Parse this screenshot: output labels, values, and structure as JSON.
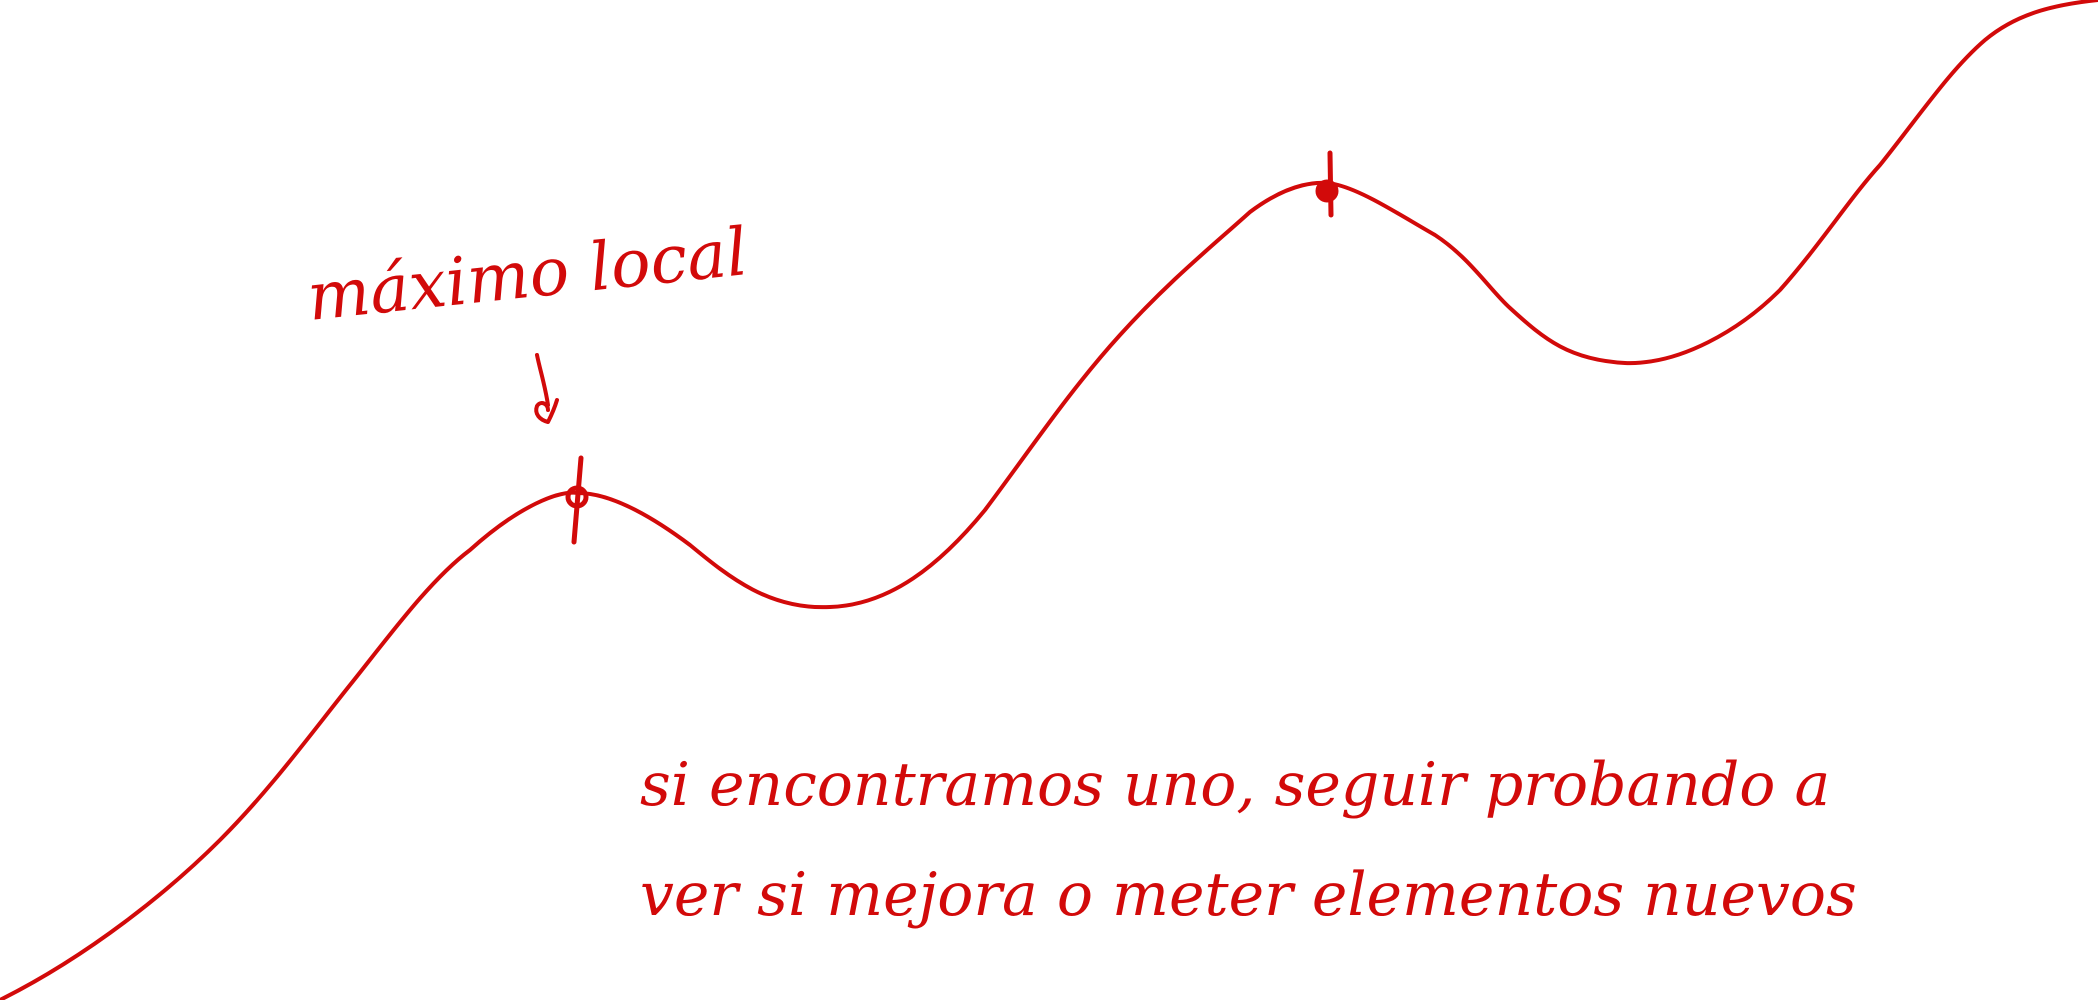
{
  "diagram": {
    "ink_color": "#d20a0a",
    "background": "#ffffff",
    "annotation_label": "máximo local",
    "note_line_1": "si encontramos uno, seguir probando a",
    "note_line_2": "ver si mejora o meter elementos nuevos"
  }
}
